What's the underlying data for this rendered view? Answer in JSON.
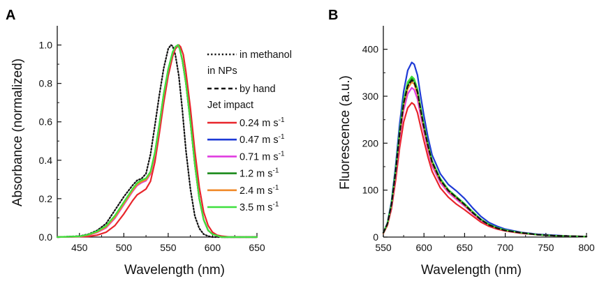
{
  "chart_data": [
    {
      "panel_label": "A",
      "type": "line",
      "xlabel": "Wavelength (nm)",
      "ylabel": "Absorbance (normalized)",
      "xlim": [
        425,
        650
      ],
      "ylim": [
        0,
        1.1
      ],
      "xticks": [
        "450",
        "500",
        "550",
        "600",
        "650"
      ],
      "yticks": [
        "0.0",
        "0.2",
        "0.4",
        "0.6",
        "0.8",
        "1.0"
      ],
      "legend": {
        "position": "right of peak",
        "title_methanol": "in methanol",
        "heading_nps": "in NPs",
        "by_hand": "by hand",
        "heading_jet": "Jet impact",
        "speeds": [
          {
            "name": "0.24 m s",
            "exp": "-1",
            "color": "#e8252b"
          },
          {
            "name": "0.47 m s",
            "exp": "-1",
            "color": "#1e3ad6"
          },
          {
            "name": "0.71 m s",
            "exp": "-1",
            "color": "#e03be0"
          },
          {
            "name": "1.2 m s",
            "exp": "-1",
            "color": "#1a8a1a"
          },
          {
            "name": "2.4 m s",
            "exp": "-1",
            "color": "#f08a2a"
          },
          {
            "name": "3.5 m s",
            "exp": "-1",
            "color": "#3ee03e"
          }
        ]
      },
      "series": [
        {
          "name": "in methanol",
          "style": "dotted",
          "color": "#111111",
          "x": [
            425,
            450,
            460,
            470,
            480,
            490,
            500,
            510,
            515,
            520,
            525,
            530,
            535,
            540,
            545,
            550,
            553,
            555,
            558,
            562,
            566,
            570,
            575,
            580,
            585,
            590,
            595,
            600,
            610,
            620,
            650
          ],
          "y": [
            0.0,
            0.005,
            0.015,
            0.035,
            0.07,
            0.14,
            0.21,
            0.27,
            0.295,
            0.305,
            0.33,
            0.43,
            0.58,
            0.74,
            0.88,
            0.98,
            1.0,
            0.995,
            0.95,
            0.84,
            0.66,
            0.45,
            0.25,
            0.11,
            0.045,
            0.015,
            0.005,
            0.0,
            0.0,
            0.0,
            0.0
          ]
        },
        {
          "name": "by hand",
          "style": "dashed",
          "color": "#111111",
          "x": [
            425,
            450,
            460,
            470,
            480,
            490,
            500,
            510,
            515,
            520,
            525,
            530,
            535,
            540,
            545,
            550,
            555,
            558,
            561,
            563,
            566,
            570,
            575,
            580,
            585,
            590,
            595,
            600,
            610,
            620,
            650
          ],
          "y": [
            0.0,
            0.003,
            0.01,
            0.025,
            0.05,
            0.1,
            0.17,
            0.24,
            0.27,
            0.285,
            0.295,
            0.33,
            0.43,
            0.58,
            0.74,
            0.87,
            0.96,
            0.99,
            1.0,
            0.98,
            0.92,
            0.8,
            0.6,
            0.38,
            0.2,
            0.09,
            0.035,
            0.015,
            0.0,
            0.0,
            0.0
          ]
        },
        {
          "name": "0.24 m s-1",
          "style": "solid",
          "color": "#e8252b",
          "x": [
            425,
            460,
            470,
            480,
            490,
            500,
            510,
            515,
            520,
            525,
            530,
            535,
            540,
            545,
            550,
            555,
            558,
            562,
            564,
            567,
            570,
            575,
            580,
            585,
            590,
            595,
            600,
            605,
            610,
            620,
            650
          ],
          "y": [
            0.0,
            0.003,
            0.01,
            0.025,
            0.06,
            0.12,
            0.19,
            0.22,
            0.235,
            0.25,
            0.29,
            0.39,
            0.54,
            0.7,
            0.84,
            0.94,
            0.98,
            1.0,
            0.99,
            0.95,
            0.86,
            0.67,
            0.45,
            0.26,
            0.13,
            0.06,
            0.025,
            0.01,
            0.005,
            0.0,
            0.0
          ]
        },
        {
          "name": "0.47 m s-1",
          "style": "solid",
          "color": "#1e3ad6",
          "x": [
            425,
            450,
            460,
            470,
            480,
            490,
            500,
            510,
            515,
            520,
            525,
            530,
            535,
            540,
            545,
            550,
            555,
            558,
            561,
            563,
            566,
            570,
            575,
            580,
            585,
            590,
            595,
            600,
            610,
            620,
            650
          ],
          "y": [
            0.0,
            0.003,
            0.01,
            0.025,
            0.05,
            0.1,
            0.17,
            0.24,
            0.27,
            0.29,
            0.3,
            0.335,
            0.435,
            0.58,
            0.74,
            0.87,
            0.96,
            0.99,
            1.0,
            0.98,
            0.92,
            0.8,
            0.6,
            0.38,
            0.2,
            0.09,
            0.035,
            0.015,
            0.0,
            0.0,
            0.0
          ]
        },
        {
          "name": "0.71 m s-1",
          "style": "solid",
          "color": "#e03be0",
          "x": [
            425,
            450,
            460,
            470,
            480,
            490,
            500,
            510,
            515,
            520,
            525,
            530,
            535,
            540,
            545,
            550,
            555,
            558,
            561,
            563,
            566,
            570,
            575,
            580,
            585,
            590,
            595,
            600,
            610,
            620,
            650
          ],
          "y": [
            0.0,
            0.003,
            0.01,
            0.024,
            0.048,
            0.098,
            0.168,
            0.238,
            0.268,
            0.283,
            0.293,
            0.328,
            0.428,
            0.578,
            0.738,
            0.868,
            0.958,
            0.988,
            1.0,
            0.98,
            0.92,
            0.8,
            0.6,
            0.38,
            0.2,
            0.09,
            0.035,
            0.015,
            0.0,
            0.0,
            0.0
          ]
        },
        {
          "name": "1.2 m s-1",
          "style": "solid",
          "color": "#1a8a1a",
          "x": [
            425,
            450,
            460,
            470,
            480,
            490,
            500,
            510,
            515,
            520,
            525,
            530,
            535,
            540,
            545,
            550,
            555,
            558,
            561,
            563,
            566,
            570,
            575,
            580,
            585,
            590,
            595,
            600,
            610,
            620,
            650
          ],
          "y": [
            0.0,
            0.004,
            0.012,
            0.028,
            0.055,
            0.108,
            0.178,
            0.248,
            0.278,
            0.293,
            0.303,
            0.338,
            0.438,
            0.585,
            0.745,
            0.872,
            0.962,
            0.99,
            1.0,
            0.98,
            0.92,
            0.8,
            0.6,
            0.38,
            0.2,
            0.09,
            0.035,
            0.015,
            0.0,
            0.0,
            0.0
          ]
        },
        {
          "name": "2.4 m s-1",
          "style": "solid",
          "color": "#f08a2a",
          "x": [
            425,
            450,
            460,
            470,
            480,
            490,
            500,
            510,
            515,
            520,
            525,
            530,
            535,
            540,
            545,
            550,
            555,
            558,
            561,
            563,
            566,
            570,
            575,
            580,
            585,
            590,
            595,
            600,
            610,
            620,
            650
          ],
          "y": [
            0.0,
            0.003,
            0.011,
            0.026,
            0.052,
            0.103,
            0.173,
            0.243,
            0.273,
            0.288,
            0.298,
            0.333,
            0.433,
            0.58,
            0.74,
            0.87,
            0.96,
            0.99,
            1.0,
            0.98,
            0.92,
            0.8,
            0.6,
            0.38,
            0.2,
            0.09,
            0.035,
            0.015,
            0.0,
            0.0,
            0.0
          ]
        },
        {
          "name": "3.5 m s-1",
          "style": "solid",
          "color": "#3ee03e",
          "x": [
            425,
            450,
            460,
            470,
            480,
            490,
            500,
            510,
            515,
            520,
            525,
            530,
            535,
            540,
            545,
            550,
            555,
            558,
            561,
            563,
            566,
            570,
            575,
            580,
            585,
            590,
            595,
            600,
            610,
            620,
            650
          ],
          "y": [
            0.0,
            0.004,
            0.013,
            0.03,
            0.058,
            0.112,
            0.182,
            0.252,
            0.282,
            0.297,
            0.306,
            0.341,
            0.441,
            0.588,
            0.748,
            0.875,
            0.963,
            0.99,
            1.0,
            0.98,
            0.92,
            0.8,
            0.6,
            0.38,
            0.2,
            0.09,
            0.035,
            0.015,
            0.0,
            0.0,
            0.0
          ]
        }
      ]
    },
    {
      "panel_label": "B",
      "type": "line",
      "xlabel": "Wavelength (nm)",
      "ylabel": "Fluorescence (a.u.)",
      "xlim": [
        550,
        800
      ],
      "ylim": [
        0,
        450
      ],
      "xticks": [
        "550",
        "600",
        "650",
        "700",
        "750",
        "800"
      ],
      "yticks": [
        "0",
        "100",
        "200",
        "300",
        "400"
      ],
      "series": [
        {
          "name": "0.24 m s-1",
          "style": "solid",
          "color": "#e8252b",
          "x": [
            550,
            555,
            560,
            565,
            570,
            575,
            580,
            585,
            588,
            592,
            596,
            600,
            605,
            610,
            620,
            630,
            640,
            650,
            660,
            670,
            680,
            690,
            700,
            720,
            740,
            760,
            780,
            800
          ],
          "y": [
            8,
            25,
            60,
            120,
            190,
            245,
            275,
            286,
            282,
            265,
            235,
            205,
            170,
            140,
            105,
            85,
            70,
            58,
            45,
            32,
            23,
            17,
            13,
            8,
            5,
            3,
            2,
            1
          ]
        },
        {
          "name": "0.47 m s-1",
          "style": "solid",
          "color": "#1e3ad6",
          "x": [
            550,
            555,
            560,
            565,
            570,
            575,
            580,
            585,
            588,
            592,
            596,
            600,
            605,
            610,
            620,
            630,
            640,
            650,
            660,
            670,
            680,
            690,
            700,
            720,
            740,
            760,
            780,
            800
          ],
          "y": [
            9,
            30,
            75,
            150,
            240,
            310,
            355,
            372,
            368,
            345,
            300,
            258,
            212,
            175,
            135,
            112,
            98,
            82,
            62,
            44,
            31,
            23,
            17,
            10,
            6,
            4,
            2,
            1
          ]
        },
        {
          "name": "0.71 m s-1",
          "style": "solid",
          "color": "#e03be0",
          "x": [
            550,
            555,
            560,
            565,
            570,
            575,
            580,
            585,
            588,
            592,
            596,
            600,
            605,
            610,
            620,
            630,
            640,
            650,
            660,
            670,
            680,
            690,
            700,
            720,
            740,
            760,
            780,
            800
          ],
          "y": [
            8,
            27,
            66,
            132,
            210,
            270,
            305,
            318,
            314,
            294,
            258,
            224,
            185,
            152,
            116,
            95,
            80,
            66,
            50,
            36,
            26,
            19,
            14,
            9,
            5,
            3,
            2,
            1
          ]
        },
        {
          "name": "1.2 m s-1",
          "style": "solid",
          "color": "#1a8a1a",
          "x": [
            550,
            555,
            560,
            565,
            570,
            575,
            580,
            585,
            588,
            592,
            596,
            600,
            605,
            610,
            620,
            630,
            640,
            650,
            660,
            670,
            680,
            690,
            700,
            720,
            740,
            760,
            780,
            800
          ],
          "y": [
            9,
            28,
            70,
            140,
            222,
            288,
            325,
            338,
            333,
            312,
            272,
            236,
            196,
            161,
            123,
            100,
            85,
            70,
            53,
            38,
            27,
            20,
            15,
            9,
            5,
            3,
            2,
            1
          ]
        },
        {
          "name": "2.4 m s-1",
          "style": "solid",
          "color": "#f08a2a",
          "x": [
            550,
            555,
            560,
            565,
            570,
            575,
            580,
            585,
            588,
            592,
            596,
            600,
            605,
            610,
            620,
            630,
            640,
            650,
            660,
            670,
            680,
            690,
            700,
            720,
            740,
            760,
            780,
            800
          ],
          "y": [
            8,
            27,
            68,
            136,
            216,
            280,
            316,
            330,
            326,
            305,
            267,
            231,
            191,
            157,
            120,
            98,
            83,
            68,
            52,
            37,
            26,
            19,
            14,
            9,
            5,
            3,
            2,
            1
          ]
        },
        {
          "name": "3.5 m s-1",
          "style": "solid",
          "color": "#3ee03e",
          "x": [
            550,
            555,
            560,
            565,
            570,
            575,
            580,
            585,
            588,
            592,
            596,
            600,
            605,
            610,
            620,
            630,
            640,
            650,
            660,
            670,
            680,
            690,
            700,
            720,
            740,
            760,
            780,
            800
          ],
          "y": [
            9,
            29,
            71,
            142,
            226,
            292,
            330,
            342,
            337,
            316,
            276,
            239,
            198,
            163,
            125,
            101,
            86,
            71,
            54,
            38,
            27,
            20,
            15,
            9,
            5,
            3,
            2,
            1
          ]
        },
        {
          "name": "by hand",
          "style": "dashed",
          "color": "#111111",
          "x": [
            550,
            555,
            560,
            565,
            570,
            575,
            580,
            585,
            588,
            592,
            596,
            600,
            605,
            610,
            620,
            630,
            640,
            650,
            660,
            670,
            680,
            690,
            700,
            720,
            740,
            760,
            780,
            800
          ],
          "y": [
            9,
            28,
            69,
            138,
            220,
            285,
            322,
            334,
            330,
            309,
            270,
            234,
            194,
            160,
            122,
            99,
            84,
            69,
            52,
            37,
            26,
            19,
            14,
            9,
            5,
            3,
            2,
            1
          ]
        }
      ]
    }
  ]
}
